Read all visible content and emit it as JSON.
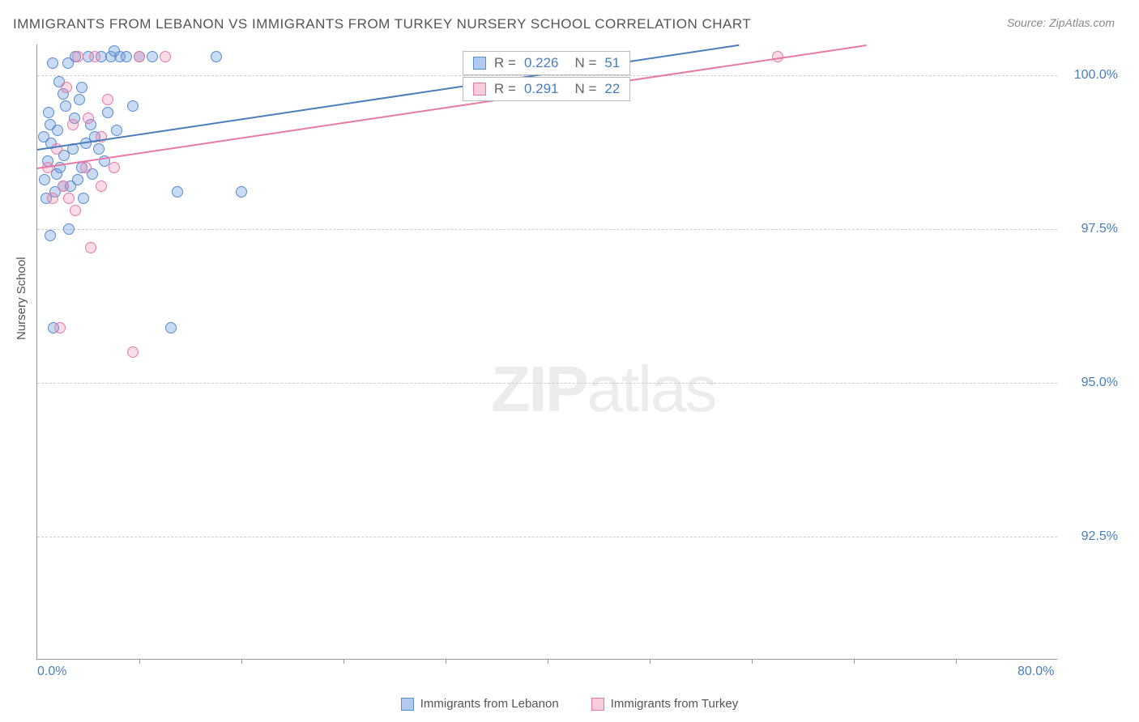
{
  "title": "IMMIGRANTS FROM LEBANON VS IMMIGRANTS FROM TURKEY NURSERY SCHOOL CORRELATION CHART",
  "source_prefix": "Source: ",
  "source_name": "ZipAtlas.com",
  "y_axis_label": "Nursery School",
  "watermark_bold": "ZIP",
  "watermark_rest": "atlas",
  "chart": {
    "type": "scatter",
    "x_range": [
      0,
      80
    ],
    "y_range": [
      90.5,
      100.5
    ],
    "x_ticks": [
      0.0,
      80.0
    ],
    "x_tick_labels": [
      "0.0%",
      "80.0%"
    ],
    "x_minor_ticks": [
      8,
      16,
      24,
      32,
      40,
      48,
      56,
      64,
      72
    ],
    "y_ticks": [
      92.5,
      95.0,
      97.5,
      100.0
    ],
    "y_tick_labels": [
      "92.5%",
      "95.0%",
      "97.5%",
      "100.0%"
    ],
    "background_color": "#ffffff",
    "grid_color": "#cccccc",
    "axis_color": "#999999",
    "label_color": "#4a7ebb",
    "title_color": "#555555",
    "title_fontsize": 17,
    "tick_fontsize": 16,
    "marker_radius": 7
  },
  "series": [
    {
      "name": "Immigrants from Lebanon",
      "color_fill": "rgba(100,150,220,0.35)",
      "color_stroke": "#5a8cd0",
      "css_class": "blue",
      "R_label": "R =",
      "R_value": "0.226",
      "N_label": "N =",
      "N_value": "51",
      "trend": {
        "x1": 0,
        "y1": 98.8,
        "x2": 55,
        "y2": 100.5
      },
      "points": [
        [
          0.5,
          99.0
        ],
        [
          0.8,
          98.6
        ],
        [
          1.0,
          99.2
        ],
        [
          1.2,
          100.2
        ],
        [
          1.5,
          98.4
        ],
        [
          1.8,
          98.5
        ],
        [
          2.0,
          98.2
        ],
        [
          2.0,
          99.7
        ],
        [
          2.4,
          100.2
        ],
        [
          2.6,
          98.2
        ],
        [
          2.8,
          98.8
        ],
        [
          3.0,
          100.3
        ],
        [
          3.2,
          98.3
        ],
        [
          3.5,
          99.8
        ],
        [
          3.5,
          98.5
        ],
        [
          4.0,
          100.3
        ],
        [
          4.3,
          98.4
        ],
        [
          4.5,
          99.0
        ],
        [
          5.0,
          100.3
        ],
        [
          5.3,
          98.6
        ],
        [
          5.8,
          100.3
        ],
        [
          6.0,
          100.4
        ],
        [
          6.5,
          100.3
        ],
        [
          7.0,
          100.3
        ],
        [
          8.0,
          100.3
        ],
        [
          9.0,
          100.3
        ],
        [
          2.2,
          99.5
        ],
        [
          1.0,
          97.4
        ],
        [
          11.0,
          98.1
        ],
        [
          14.0,
          100.3
        ],
        [
          16.0,
          98.1
        ],
        [
          1.3,
          95.9
        ],
        [
          10.5,
          95.9
        ],
        [
          2.5,
          97.5
        ],
        [
          0.7,
          98.0
        ],
        [
          1.1,
          98.9
        ],
        [
          1.6,
          99.1
        ],
        [
          2.1,
          98.7
        ],
        [
          2.9,
          99.3
        ],
        [
          3.3,
          99.6
        ],
        [
          3.8,
          98.9
        ],
        [
          4.2,
          99.2
        ],
        [
          4.8,
          98.8
        ],
        [
          5.5,
          99.4
        ],
        [
          6.2,
          99.1
        ],
        [
          0.6,
          98.3
        ],
        [
          0.9,
          99.4
        ],
        [
          1.4,
          98.1
        ],
        [
          1.7,
          99.9
        ],
        [
          3.6,
          98.0
        ],
        [
          7.5,
          99.5
        ]
      ]
    },
    {
      "name": "Immigrants from Turkey",
      "color_fill": "rgba(235,130,170,0.28)",
      "color_stroke": "#e67aa5",
      "css_class": "pink",
      "R_label": "R =",
      "R_value": "0.291",
      "N_label": "N =",
      "N_value": "22",
      "trend": {
        "x1": 0,
        "y1": 98.5,
        "x2": 65,
        "y2": 100.5
      },
      "points": [
        [
          0.8,
          98.5
        ],
        [
          1.5,
          98.8
        ],
        [
          2.0,
          98.2
        ],
        [
          2.5,
          98.0
        ],
        [
          2.8,
          99.2
        ],
        [
          3.2,
          100.3
        ],
        [
          3.8,
          98.5
        ],
        [
          4.5,
          100.3
        ],
        [
          5.0,
          99.0
        ],
        [
          5.5,
          99.6
        ],
        [
          6.0,
          98.5
        ],
        [
          8.0,
          100.3
        ],
        [
          10.0,
          100.3
        ],
        [
          1.2,
          98.0
        ],
        [
          4.0,
          99.3
        ],
        [
          3.0,
          97.8
        ],
        [
          4.2,
          97.2
        ],
        [
          7.5,
          95.5
        ],
        [
          1.8,
          95.9
        ],
        [
          5.0,
          98.2
        ],
        [
          58.0,
          100.3
        ],
        [
          2.3,
          99.8
        ]
      ]
    }
  ],
  "legend": [
    {
      "label": "Immigrants from Lebanon",
      "css_class": "blue"
    },
    {
      "label": "Immigrants from Turkey",
      "css_class": "pink"
    }
  ]
}
